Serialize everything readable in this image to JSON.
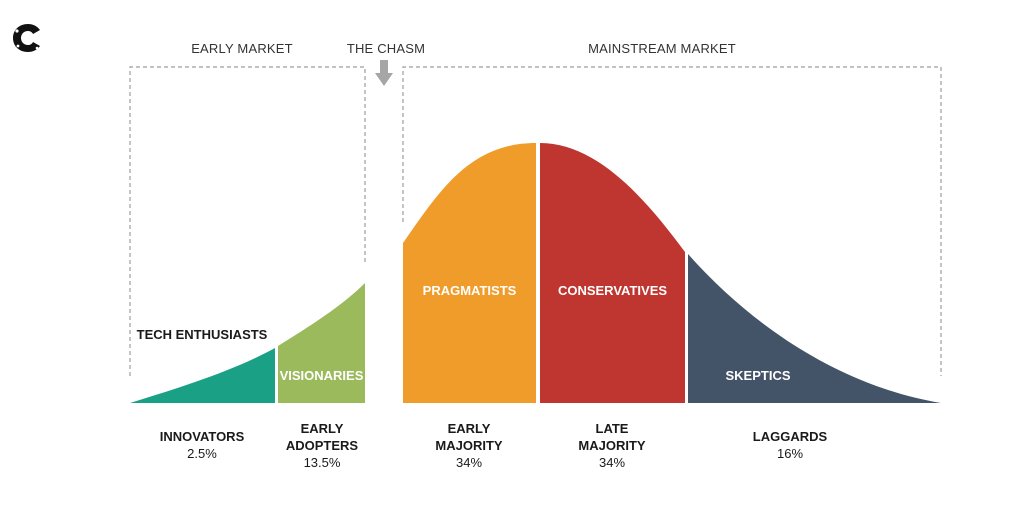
{
  "logo_icon": "c-logo-icon",
  "headers": {
    "early_market": "EARLY MARKET",
    "chasm": "THE CHASM",
    "mainstream_market": "MAINSTREAM MARKET"
  },
  "segments": [
    {
      "curve_label": "",
      "category": [
        "INNOVATORS"
      ],
      "percent": "2.5%",
      "color": "#1aa185"
    },
    {
      "curve_label": "VISIONARIES",
      "category": [
        "EARLY",
        "ADOPTERS"
      ],
      "percent": "13.5%",
      "color": "#9aba5c"
    },
    {
      "curve_label": "PRAGMATISTS",
      "category": [
        "EARLY",
        "MAJORITY"
      ],
      "percent": "34%",
      "color": "#f09c2b"
    },
    {
      "curve_label": "CONSERVATIVES",
      "category": [
        "LATE",
        "MAJORITY"
      ],
      "percent": "34%",
      "color": "#bf3631"
    },
    {
      "curve_label": "SKEPTICS",
      "category": [
        "LAGGARDS"
      ],
      "percent": "16%",
      "color": "#435468"
    }
  ],
  "outside_label": "TECH ENTHUSIASTS",
  "chasm_arrow_icon": "down-arrow-icon",
  "bracket_color": "#9e9e9e",
  "arrow_color": "#a6a6a6"
}
